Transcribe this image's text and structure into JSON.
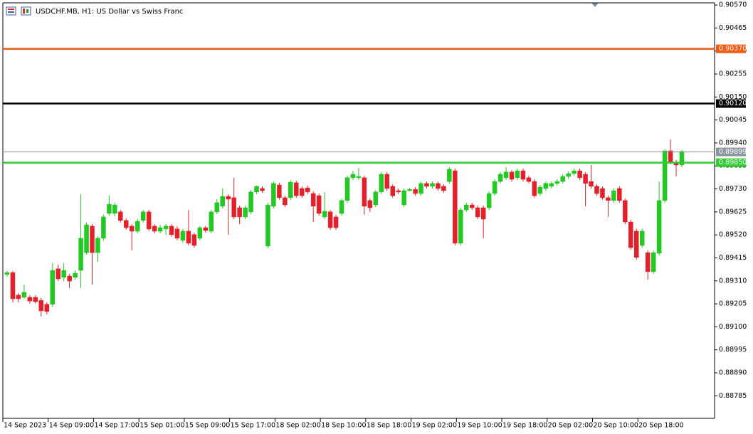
{
  "chart_data": {
    "type": "candlestick",
    "title": "USDCHF.MB, H1: US Dollar vs Swiss Franc",
    "categories": [
      "14 Sep 2023",
      null,
      null,
      null,
      null,
      null,
      null,
      null,
      "14 Sep 09:00",
      null,
      null,
      null,
      null,
      null,
      null,
      null,
      "14 Sep 17:00",
      null,
      null,
      null,
      null,
      null,
      null,
      null,
      "15 Sep 01:00",
      null,
      null,
      null,
      null,
      null,
      null,
      null,
      "15 Sep 09:00",
      null,
      null,
      null,
      null,
      null,
      null,
      null,
      "15 Sep 17:00",
      null,
      null,
      null,
      null,
      null,
      null,
      null,
      "18 Sep 02:00",
      null,
      null,
      null,
      null,
      null,
      null,
      null,
      "18 Sep 10:00",
      null,
      null,
      null,
      null,
      null,
      null,
      null,
      "18 Sep 18:00",
      null,
      null,
      null,
      null,
      null,
      null,
      null,
      "19 Sep 02:00",
      null,
      null,
      null,
      null,
      null,
      null,
      null,
      "19 Sep 10:00",
      null,
      null,
      null,
      null,
      null,
      null,
      null,
      "19 Sep 18:00",
      null,
      null,
      null,
      null,
      null,
      null,
      null,
      "20 Sep 02:00",
      null,
      null,
      null,
      null,
      null,
      null,
      null,
      "20 Sep 10:00",
      null,
      null,
      null,
      null,
      null,
      null,
      null,
      "20 Sep 18:00",
      null,
      null,
      null,
      null,
      null,
      null,
      null
    ],
    "open": [
      0.89339,
      0.89348,
      0.89245,
      0.89235,
      0.89235,
      0.89235,
      0.89221,
      0.89203,
      0.89203,
      0.89365,
      0.89326,
      0.89332,
      0.89326,
      0.89358,
      0.89439,
      0.8956,
      0.89439,
      0.89505,
      0.89618,
      0.89618,
      0.89625,
      0.89586,
      0.8956,
      0.89537,
      0.89586,
      0.89625,
      0.8956,
      0.89537,
      0.89547,
      0.8956,
      0.89547,
      0.89495,
      0.89537,
      0.89521,
      0.89505,
      0.89553,
      0.89537,
      0.89625,
      0.89651,
      0.89696,
      0.8969,
      0.89644,
      0.89602,
      0.89625,
      0.89716,
      0.89732,
      0.89469,
      0.89651,
      0.89748,
      0.8969,
      0.8969,
      0.89758,
      0.89732,
      0.89735,
      0.89709,
      0.89699,
      0.89602,
      0.89625,
      0.89602,
      0.89618,
      0.89677,
      0.89781,
      0.89781,
      0.89781,
      0.89677,
      0.89657,
      0.89716,
      0.89797,
      0.89742,
      0.89722,
      0.89657,
      0.89722,
      0.89728,
      0.89709,
      0.89755,
      0.89742,
      0.89755,
      0.89742,
      0.89764,
      0.89813,
      0.89482,
      0.89634,
      0.89657,
      0.89644,
      0.89644,
      0.89644,
      0.89709,
      0.89764,
      0.89781,
      0.89807,
      0.89781,
      0.89813,
      0.89781,
      0.89764,
      0.89709,
      0.89732,
      0.89742,
      0.89755,
      0.89764,
      0.89787,
      0.898,
      0.89813,
      0.89797,
      0.89764,
      0.89742,
      0.89732,
      0.8969,
      0.89677,
      0.89732,
      0.89677,
      0.89579,
      0.89537,
      0.89472,
      0.89439,
      0.89352,
      0.89436,
      0.89677,
      0.89904,
      0.89852,
      0.89839
    ],
    "high": [
      0.89355,
      0.89355,
      0.89254,
      0.89293,
      0.89245,
      0.89245,
      0.89232,
      0.89212,
      0.89391,
      0.89384,
      0.89391,
      0.89342,
      0.89358,
      0.89706,
      0.89576,
      0.89569,
      0.89514,
      0.89612,
      0.89699,
      0.89667,
      0.89634,
      0.89595,
      0.89569,
      0.89592,
      0.89634,
      0.89634,
      0.89569,
      0.89566,
      0.89569,
      0.89569,
      0.8956,
      0.89547,
      0.89634,
      0.8953,
      0.8956,
      0.8956,
      0.89634,
      0.89683,
      0.89732,
      0.89706,
      0.89781,
      0.89654,
      0.89654,
      0.89725,
      0.89745,
      0.89742,
      0.89667,
      0.89764,
      0.89758,
      0.89699,
      0.89771,
      0.89768,
      0.89742,
      0.89745,
      0.89719,
      0.89709,
      0.89716,
      0.89634,
      0.89612,
      0.89686,
      0.8979,
      0.89813,
      0.89826,
      0.8979,
      0.89686,
      0.89725,
      0.89807,
      0.89807,
      0.89751,
      0.89732,
      0.89732,
      0.89735,
      0.89738,
      0.89764,
      0.89764,
      0.89764,
      0.89764,
      0.89751,
      0.89829,
      0.89823,
      0.89644,
      0.89667,
      0.89667,
      0.89654,
      0.89654,
      0.89719,
      0.89774,
      0.89807,
      0.89829,
      0.89816,
      0.89823,
      0.89823,
      0.8979,
      0.89774,
      0.89748,
      0.89764,
      0.89764,
      0.89774,
      0.89797,
      0.8981,
      0.89823,
      0.89823,
      0.89807,
      0.89839,
      0.89751,
      0.89742,
      0.89699,
      0.89732,
      0.89742,
      0.89686,
      0.89589,
      0.89547,
      0.89547,
      0.89449,
      0.89449,
      0.89764,
      0.8991,
      0.89956,
      0.89862,
      0.89908
    ],
    "low": [
      0.89329,
      0.89212,
      0.89212,
      0.89228,
      0.89206,
      0.89206,
      0.89147,
      0.89157,
      0.89192,
      0.89309,
      0.89309,
      0.89277,
      0.89316,
      0.89277,
      0.8943,
      0.89293,
      0.89397,
      0.89495,
      0.89608,
      0.89605,
      0.89576,
      0.89543,
      0.89449,
      0.89527,
      0.89576,
      0.89537,
      0.89527,
      0.89527,
      0.89521,
      0.89511,
      0.89495,
      0.89485,
      0.89472,
      0.89462,
      0.89495,
      0.8953,
      0.89527,
      0.89615,
      0.89641,
      0.89521,
      0.89592,
      0.89569,
      0.89592,
      0.89615,
      0.89706,
      0.89712,
      0.89459,
      0.89641,
      0.8968,
      0.89647,
      0.8968,
      0.8969,
      0.8969,
      0.89706,
      0.89579,
      0.89608,
      0.89592,
      0.89543,
      0.89543,
      0.89608,
      0.89667,
      0.89771,
      0.89771,
      0.89612,
      0.89625,
      0.89647,
      0.89706,
      0.89722,
      0.8969,
      0.89706,
      0.89647,
      0.89719,
      0.89699,
      0.89699,
      0.89732,
      0.89732,
      0.89722,
      0.89712,
      0.89755,
      0.89472,
      0.89472,
      0.89625,
      0.89634,
      0.89592,
      0.89505,
      0.89634,
      0.89699,
      0.89755,
      0.89771,
      0.89764,
      0.89771,
      0.89764,
      0.89755,
      0.8969,
      0.89699,
      0.89722,
      0.89732,
      0.89745,
      0.89755,
      0.89777,
      0.8979,
      0.89771,
      0.89651,
      0.89732,
      0.89699,
      0.8968,
      0.89602,
      0.89667,
      0.89667,
      0.89569,
      0.89452,
      0.89407,
      0.89462,
      0.89316,
      0.89342,
      0.89426,
      0.89667,
      0.89843,
      0.89787,
      0.89829
    ],
    "close": [
      0.89348,
      0.89228,
      0.89228,
      0.89258,
      0.89218,
      0.89215,
      0.89173,
      0.8917,
      0.89358,
      0.89319,
      0.89358,
      0.89309,
      0.89345,
      0.89505,
      0.89566,
      0.89439,
      0.89505,
      0.89602,
      0.8966,
      0.89657,
      0.89586,
      0.89553,
      0.89537,
      0.89582,
      0.89625,
      0.89547,
      0.89537,
      0.89553,
      0.8956,
      0.89521,
      0.89505,
      0.89537,
      0.89482,
      0.89472,
      0.89553,
      0.8954,
      0.89625,
      0.89667,
      0.89696,
      0.89683,
      0.89602,
      0.89602,
      0.89644,
      0.89716,
      0.89742,
      0.89722,
      0.89657,
      0.89755,
      0.8969,
      0.89657,
      0.89761,
      0.89699,
      0.89699,
      0.89716,
      0.89651,
      0.89618,
      0.89628,
      0.89553,
      0.89553,
      0.89677,
      0.89781,
      0.89797,
      0.89787,
      0.89651,
      0.89644,
      0.89716,
      0.89797,
      0.89732,
      0.89699,
      0.89716,
      0.89722,
      0.89728,
      0.89709,
      0.89755,
      0.89742,
      0.89755,
      0.89732,
      0.89722,
      0.8982,
      0.89482,
      0.89634,
      0.89657,
      0.89644,
      0.89602,
      0.89592,
      0.89709,
      0.89764,
      0.89797,
      0.89807,
      0.89774,
      0.89813,
      0.89774,
      0.89764,
      0.89699,
      0.89738,
      0.89755,
      0.89755,
      0.89764,
      0.89787,
      0.898,
      0.89813,
      0.89781,
      0.89755,
      0.89742,
      0.89709,
      0.8969,
      0.89677,
      0.89722,
      0.89677,
      0.89579,
      0.89462,
      0.89417,
      0.89537,
      0.89352,
      0.89439,
      0.89677,
      0.89904,
      0.89852,
      0.89839,
      0.89901
    ],
    "up_color": "#22c922",
    "down_color": "#e5202a",
    "ylim": [
      0.88682,
      0.9058
    ],
    "yticks": [
      {
        "value": 0.9057,
        "label": "0.90570"
      },
      {
        "value": 0.90465,
        "label": "0.90465"
      },
      {
        "value": 0.9036,
        "label": "0.90360"
      },
      {
        "value": 0.90255,
        "label": "0.90255"
      },
      {
        "value": 0.9015,
        "label": "0.90150"
      },
      {
        "value": 0.90045,
        "label": "0.90045"
      },
      {
        "value": 0.8994,
        "label": "0.89940"
      },
      {
        "value": 0.89835,
        "label": "0.89835"
      },
      {
        "value": 0.8973,
        "label": "0.89730"
      },
      {
        "value": 0.89625,
        "label": "0.89625"
      },
      {
        "value": 0.8952,
        "label": "0.89520"
      },
      {
        "value": 0.89415,
        "label": "0.89415"
      },
      {
        "value": 0.8931,
        "label": "0.89310"
      },
      {
        "value": 0.89205,
        "label": "0.89205"
      },
      {
        "value": 0.891,
        "label": "0.89100"
      },
      {
        "value": 0.88995,
        "label": "0.88995"
      },
      {
        "value": 0.8889,
        "label": "0.88890"
      },
      {
        "value": 0.88785,
        "label": "0.88785"
      }
    ],
    "hlines": [
      {
        "value": 0.9037,
        "label": "0.90370",
        "color": "#f05a14"
      },
      {
        "value": 0.9012,
        "label": "0.90120",
        "color": "#000000"
      },
      {
        "value": 0.89899,
        "label": "0.89899",
        "color": "#8c96a0"
      },
      {
        "value": 0.8985,
        "label": "0.89850",
        "color": "#32cd32"
      }
    ],
    "grid": false
  }
}
